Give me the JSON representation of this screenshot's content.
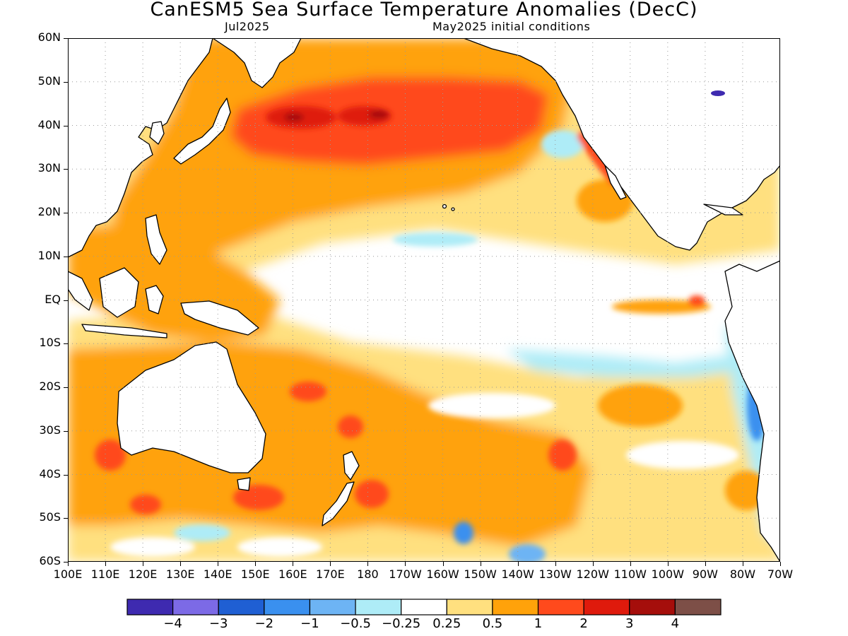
{
  "title": "CanESM5 Sea Surface Temperature Anomalies (DecC)",
  "subtitle_left": "Jul2025",
  "subtitle_right": "May2025 initial conditions",
  "lat_labels": [
    "60N",
    "50N",
    "40N",
    "30N",
    "20N",
    "10N",
    "EQ",
    "10S",
    "20S",
    "30S",
    "40S",
    "50S",
    "60S"
  ],
  "lon_labels": [
    "100E",
    "110E",
    "120E",
    "130E",
    "140E",
    "150E",
    "160E",
    "170E",
    "180",
    "170W",
    "160W",
    "150W",
    "140W",
    "130W",
    "120W",
    "110W",
    "100W",
    "90W",
    "80W",
    "70W"
  ],
  "map_extent": {
    "lon_min": 100,
    "lon_max": 290,
    "lat_min": -60,
    "lat_max": 60
  },
  "colorbar": {
    "colors": [
      "#3e2ab0",
      "#7c6ae6",
      "#1f5fd3",
      "#3a90ef",
      "#6db4f4",
      "#aeecf7",
      "#ffffff",
      "#ffe07f",
      "#ffa20a",
      "#ff4a1c",
      "#df1a0c",
      "#a50e0b",
      "#7d4f47"
    ],
    "labels": [
      "−4",
      "−3",
      "−2",
      "−1",
      "−0.5",
      "−0.25",
      "0.25",
      "0.5",
      "1",
      "2",
      "3",
      "4"
    ]
  },
  "land_color": "#ffffff",
  "map_data": {
    "warm_anomalies": [
      {
        "region": "North Pacific 30N-50N",
        "level": "2"
      },
      {
        "region": "North Pacific core 40N 160E-180",
        "level": "3"
      },
      {
        "region": "Western tropical Pacific",
        "level": "1"
      },
      {
        "region": "South Pacific 20S-50S",
        "level": "1"
      }
    ],
    "cool_anomalies": [
      {
        "region": "Eastern equatorial Pacific",
        "level": "-0.5"
      },
      {
        "region": "Peru-Chile coast",
        "level": "-1"
      }
    ]
  }
}
